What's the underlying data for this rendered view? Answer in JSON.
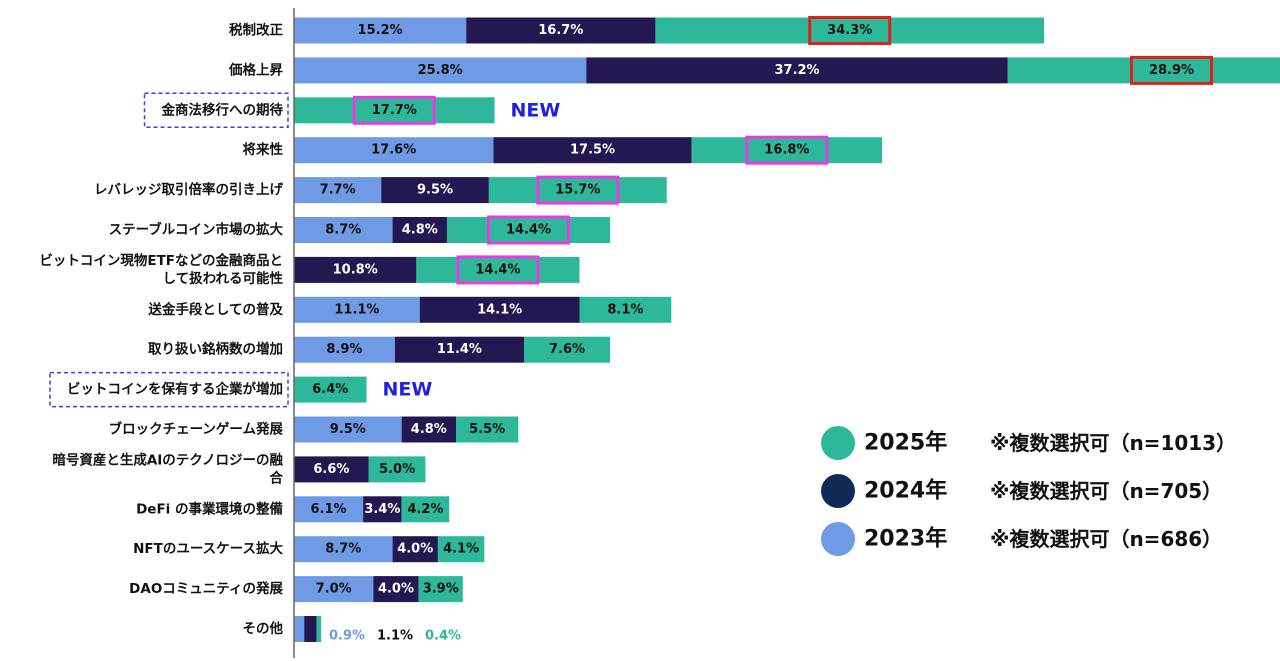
{
  "chart_data": {
    "type": "bar",
    "orientation": "horizontal",
    "stacked": true,
    "title": "",
    "xlabel": "",
    "ylabel": "",
    "categories": [
      [
        "税制改正"
      ],
      [
        "価格上昇"
      ],
      [
        "金商法移行への期待"
      ],
      [
        "将来性"
      ],
      [
        "レバレッジ取引倍率の引き上げ"
      ],
      [
        "ステーブルコイン市場の拡大"
      ],
      [
        "ビットコイン現物ETFなどの金融商品と",
        "して扱われる可能性"
      ],
      [
        "送金手段としての普及"
      ],
      [
        "取り扱い銘柄数の増加"
      ],
      [
        "ビットコインを保有する企業が増加"
      ],
      [
        "ブロックチェーンゲーム発展"
      ],
      [
        "暗号資産と生成AIのテクノロジーの融",
        "合"
      ],
      [
        "DeFi の事業環境の整備"
      ],
      [
        "NFTのユースケース拡大"
      ],
      [
        "DAOコミュニティの発展"
      ],
      [
        "その他"
      ]
    ],
    "series": [
      {
        "name": "2023年",
        "color": "#6f9ae6",
        "text_color": "#111111",
        "values": [
          15.2,
          25.8,
          null,
          17.6,
          7.7,
          8.7,
          null,
          11.1,
          8.9,
          null,
          9.5,
          null,
          6.1,
          8.7,
          7.0,
          0.9
        ],
        "labels": [
          "15.2%",
          "25.8%",
          "",
          "17.6%",
          "7.7%",
          "8.7%",
          "",
          "11.1%",
          "8.9%",
          "",
          "9.5%",
          "",
          "6.1%",
          "8.7%",
          "7.0%",
          "0.9%"
        ]
      },
      {
        "name": "2024年",
        "color": "#231852",
        "text_color": "#ffffff",
        "values": [
          16.7,
          37.2,
          null,
          17.5,
          9.5,
          4.8,
          10.8,
          14.1,
          11.4,
          null,
          4.8,
          6.6,
          3.4,
          4.0,
          4.0,
          1.1
        ],
        "labels": [
          "16.7%",
          "37.2%",
          "",
          "17.5%",
          "9.5%",
          "4.8%",
          "10.8%",
          "14.1%",
          "11.4%",
          "",
          "4.8%",
          "6.6%",
          "3.4%",
          "4.0%",
          "4.0%",
          "1.1%"
        ]
      },
      {
        "name": "2025年",
        "color": "#2eb89a",
        "text_color": "#111111",
        "values": [
          34.3,
          28.9,
          17.7,
          16.8,
          15.7,
          14.4,
          14.4,
          8.1,
          7.6,
          6.4,
          5.5,
          5.0,
          4.2,
          4.1,
          3.9,
          0.4
        ],
        "labels": [
          "34.3%",
          "28.9%",
          "17.7%",
          "16.8%",
          "15.7%",
          "14.4%",
          "14.4%",
          "8.1%",
          "7.6%",
          "6.4%",
          "5.5%",
          "5.0%",
          "4.2%",
          "4.1%",
          "3.9%",
          "0.4%"
        ]
      }
    ],
    "new_tag": "NEW",
    "new_categories": [
      2,
      9
    ],
    "highlight_red": [
      [
        0,
        2
      ],
      [
        1,
        2
      ]
    ],
    "highlight_magenta": [
      [
        2,
        2
      ],
      [
        3,
        2
      ],
      [
        4,
        2
      ],
      [
        5,
        2
      ],
      [
        6,
        2
      ]
    ],
    "legend": {
      "position": "right",
      "items": [
        {
          "label": "2025年",
          "note": "※複数選択可（n=1013）",
          "color": "#2eb89a"
        },
        {
          "label": "2024年",
          "note": "※複数選択可（n=705）",
          "color": "#0f2a55"
        },
        {
          "label": "2023年",
          "note": "※複数選択可（n=686）",
          "color": "#6f9ae6"
        }
      ]
    }
  }
}
